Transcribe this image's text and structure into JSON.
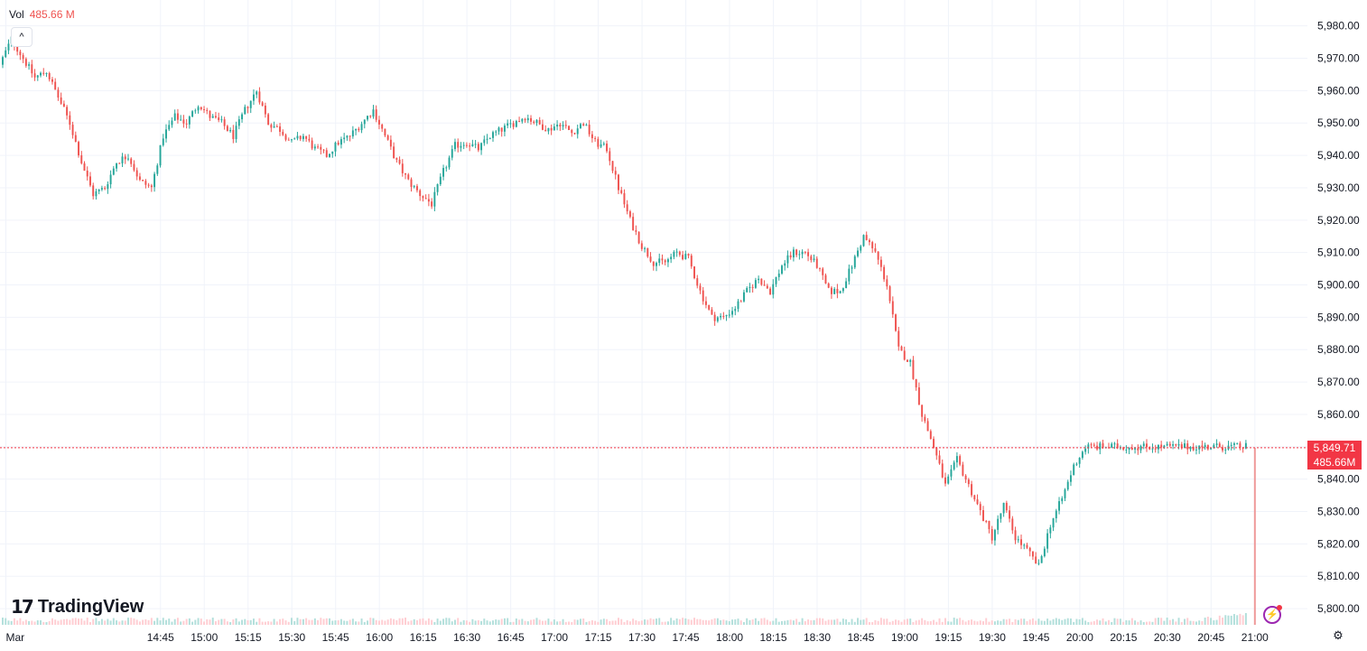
{
  "volume_legend": {
    "label": "Vol",
    "value": "485.66 M"
  },
  "branding": {
    "logo_text": "TradingView",
    "logo_mark": "17"
  },
  "colors": {
    "up": "#26a69a",
    "down": "#ef5350",
    "grid": "#f0f3fa",
    "price_line": "#f23645"
  },
  "icons": {
    "collapse": "chevron-up-icon",
    "settings": "gear-icon",
    "alert": "lightning-icon"
  },
  "chart_data": {
    "type": "candlestick",
    "title": "",
    "xlabel": "",
    "ylabel": "",
    "ylim": [
      5795,
      5988
    ],
    "y_ticks": [
      5800,
      5810,
      5820,
      5830,
      5840,
      5850,
      5860,
      5870,
      5880,
      5890,
      5900,
      5910,
      5920,
      5930,
      5940,
      5950,
      5960,
      5970,
      5980
    ],
    "y_tick_labels": [
      "5,800.00",
      "5,810.00",
      "5,820.00",
      "5,830.00",
      "5,840.00",
      "5,850.00",
      "5,860.00",
      "5,870.00",
      "5,880.00",
      "5,890.00",
      "5,900.00",
      "5,910.00",
      "5,920.00",
      "5,930.00",
      "5,940.00",
      "5,950.00",
      "5,960.00",
      "5,970.00",
      "5,980.00"
    ],
    "x_tick_labels": [
      "Mar",
      "14:45",
      "15:00",
      "15:15",
      "15:30",
      "15:45",
      "16:00",
      "16:15",
      "16:30",
      "16:45",
      "17:00",
      "17:15",
      "17:30",
      "17:45",
      "18:00",
      "18:15",
      "18:30",
      "18:45",
      "19:00",
      "19:15",
      "19:30",
      "19:45",
      "20:00",
      "20:15",
      "20:30",
      "20:45",
      "21:00"
    ],
    "x_tick_minutes": [
      832,
      885,
      900,
      915,
      930,
      945,
      960,
      975,
      990,
      1005,
      1020,
      1035,
      1050,
      1065,
      1080,
      1095,
      1110,
      1125,
      1140,
      1155,
      1170,
      1185,
      1200,
      1215,
      1230,
      1245,
      1260
    ],
    "xlim_minutes": [
      830,
      1278
    ],
    "path_points": [
      [
        830,
        5968
      ],
      [
        834,
        5976
      ],
      [
        838,
        5970
      ],
      [
        842,
        5964
      ],
      [
        846,
        5966
      ],
      [
        850,
        5958
      ],
      [
        854,
        5950
      ],
      [
        858,
        5938
      ],
      [
        862,
        5928
      ],
      [
        866,
        5930
      ],
      [
        870,
        5938
      ],
      [
        874,
        5940
      ],
      [
        878,
        5932
      ],
      [
        882,
        5930
      ],
      [
        886,
        5946
      ],
      [
        890,
        5952
      ],
      [
        894,
        5950
      ],
      [
        898,
        5956
      ],
      [
        902,
        5952
      ],
      [
        906,
        5950
      ],
      [
        910,
        5946
      ],
      [
        914,
        5954
      ],
      [
        918,
        5960
      ],
      [
        922,
        5950
      ],
      [
        926,
        5948
      ],
      [
        930,
        5944
      ],
      [
        934,
        5946
      ],
      [
        938,
        5942
      ],
      [
        942,
        5940
      ],
      [
        946,
        5944
      ],
      [
        950,
        5946
      ],
      [
        954,
        5950
      ],
      [
        958,
        5954
      ],
      [
        962,
        5946
      ],
      [
        966,
        5938
      ],
      [
        970,
        5932
      ],
      [
        974,
        5928
      ],
      [
        978,
        5925
      ],
      [
        982,
        5935
      ],
      [
        986,
        5943
      ],
      [
        990,
        5944
      ],
      [
        994,
        5942
      ],
      [
        998,
        5946
      ],
      [
        1002,
        5948
      ],
      [
        1006,
        5950
      ],
      [
        1010,
        5952
      ],
      [
        1014,
        5950
      ],
      [
        1018,
        5948
      ],
      [
        1022,
        5950
      ],
      [
        1026,
        5947
      ],
      [
        1030,
        5950
      ],
      [
        1034,
        5944
      ],
      [
        1038,
        5942
      ],
      [
        1042,
        5930
      ],
      [
        1046,
        5920
      ],
      [
        1050,
        5912
      ],
      [
        1054,
        5907
      ],
      [
        1058,
        5907
      ],
      [
        1062,
        5910
      ],
      [
        1066,
        5908
      ],
      [
        1070,
        5898
      ],
      [
        1074,
        5890
      ],
      [
        1078,
        5890
      ],
      [
        1082,
        5893
      ],
      [
        1086,
        5898
      ],
      [
        1090,
        5902
      ],
      [
        1094,
        5898
      ],
      [
        1098,
        5906
      ],
      [
        1102,
        5910
      ],
      [
        1106,
        5910
      ],
      [
        1110,
        5906
      ],
      [
        1114,
        5898
      ],
      [
        1118,
        5898
      ],
      [
        1122,
        5906
      ],
      [
        1126,
        5915
      ],
      [
        1130,
        5910
      ],
      [
        1134,
        5900
      ],
      [
        1138,
        5880
      ],
      [
        1142,
        5876
      ],
      [
        1146,
        5860
      ],
      [
        1150,
        5850
      ],
      [
        1154,
        5838
      ],
      [
        1158,
        5846
      ],
      [
        1162,
        5838
      ],
      [
        1166,
        5830
      ],
      [
        1170,
        5822
      ],
      [
        1174,
        5832
      ],
      [
        1178,
        5822
      ],
      [
        1182,
        5818
      ],
      [
        1186,
        5813
      ],
      [
        1190,
        5826
      ],
      [
        1194,
        5834
      ],
      [
        1198,
        5844
      ],
      [
        1202,
        5850
      ]
    ],
    "candle_minutes": [
      830,
      1256
    ],
    "current_price": 5849.71,
    "current_price_label": "5,849.71",
    "current_volume_label": "485.66M"
  }
}
